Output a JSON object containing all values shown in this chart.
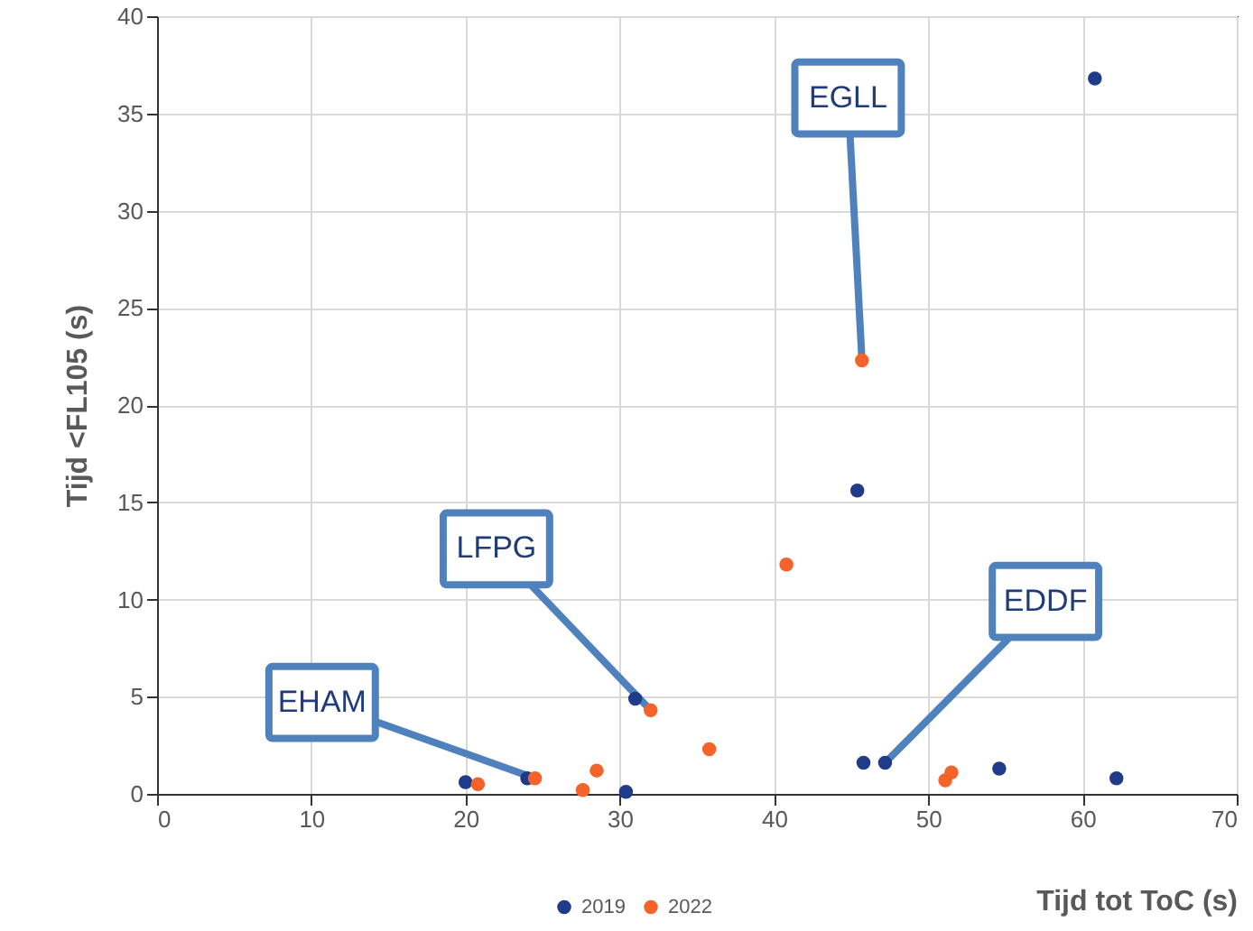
{
  "chart_data": {
    "type": "scatter",
    "xlabel": "Tijd tot ToC (s)",
    "ylabel": "Tijd <FL105 (s)",
    "xlim": [
      0,
      70
    ],
    "xticks": [
      0,
      10,
      20,
      30,
      40,
      50,
      60,
      70
    ],
    "ylim": [
      0,
      40
    ],
    "yticks": [
      0,
      5,
      10,
      15,
      20,
      25,
      30,
      35,
      40
    ],
    "grid": true,
    "legend": "bottom",
    "marker": "circle",
    "series": [
      {
        "name": "2019",
        "color": "#1f3b8a",
        "x": [
          20.0,
          24.0,
          30.4,
          31.0,
          45.4,
          45.8,
          47.2,
          54.6,
          60.8,
          62.2
        ],
        "values": [
          0.6,
          0.8,
          0.1,
          4.9,
          15.6,
          1.6,
          1.6,
          1.3,
          36.8,
          0.8
        ]
      },
      {
        "name": "2022",
        "color": "#f4632a",
        "x": [
          20.8,
          24.5,
          27.6,
          28.5,
          32.0,
          35.8,
          40.8,
          45.7,
          51.1,
          51.5
        ],
        "values": [
          0.5,
          0.8,
          0.2,
          1.2,
          4.3,
          2.3,
          11.8,
          22.3,
          0.7,
          1.1
        ]
      }
    ],
    "annotations": [
      {
        "text": "EHAM",
        "x": 24.5,
        "y": 0.8
      },
      {
        "text": "LFPG",
        "x": 32.0,
        "y": 4.3
      },
      {
        "text": "EGLL",
        "x": 45.7,
        "y": 22.3
      },
      {
        "text": "EDDF",
        "x": 47.2,
        "y": 1.6
      }
    ]
  }
}
